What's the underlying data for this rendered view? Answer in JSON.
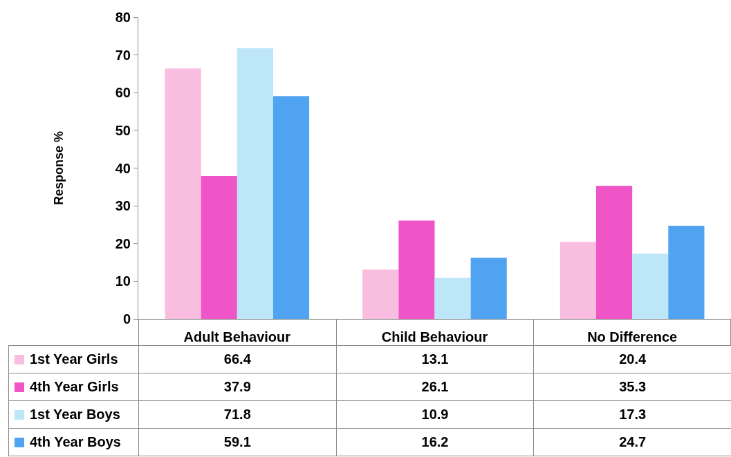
{
  "chart_data": {
    "type": "bar",
    "ylabel": "Response %",
    "categories": [
      "Adult Behaviour",
      "Child Behaviour",
      "No Difference"
    ],
    "series": [
      {
        "name": "1st Year Girls",
        "color": "#f9bde0",
        "values": [
          66.4,
          13.1,
          20.4
        ]
      },
      {
        "name": "4th Year Girls",
        "color": "#ef55c6",
        "values": [
          37.9,
          26.1,
          35.3
        ]
      },
      {
        "name": "1st Year Boys",
        "color": "#bde6f9",
        "values": [
          71.8,
          10.9,
          17.3
        ]
      },
      {
        "name": "4th Year Boys",
        "color": "#4fa3f0",
        "values": [
          59.1,
          16.2,
          24.7
        ]
      }
    ],
    "ylim": [
      0,
      80
    ],
    "yticks": [
      0,
      10,
      20,
      30,
      40,
      50,
      60,
      70,
      80
    ],
    "grid": false,
    "legend": "bottom",
    "data_labels": true
  }
}
